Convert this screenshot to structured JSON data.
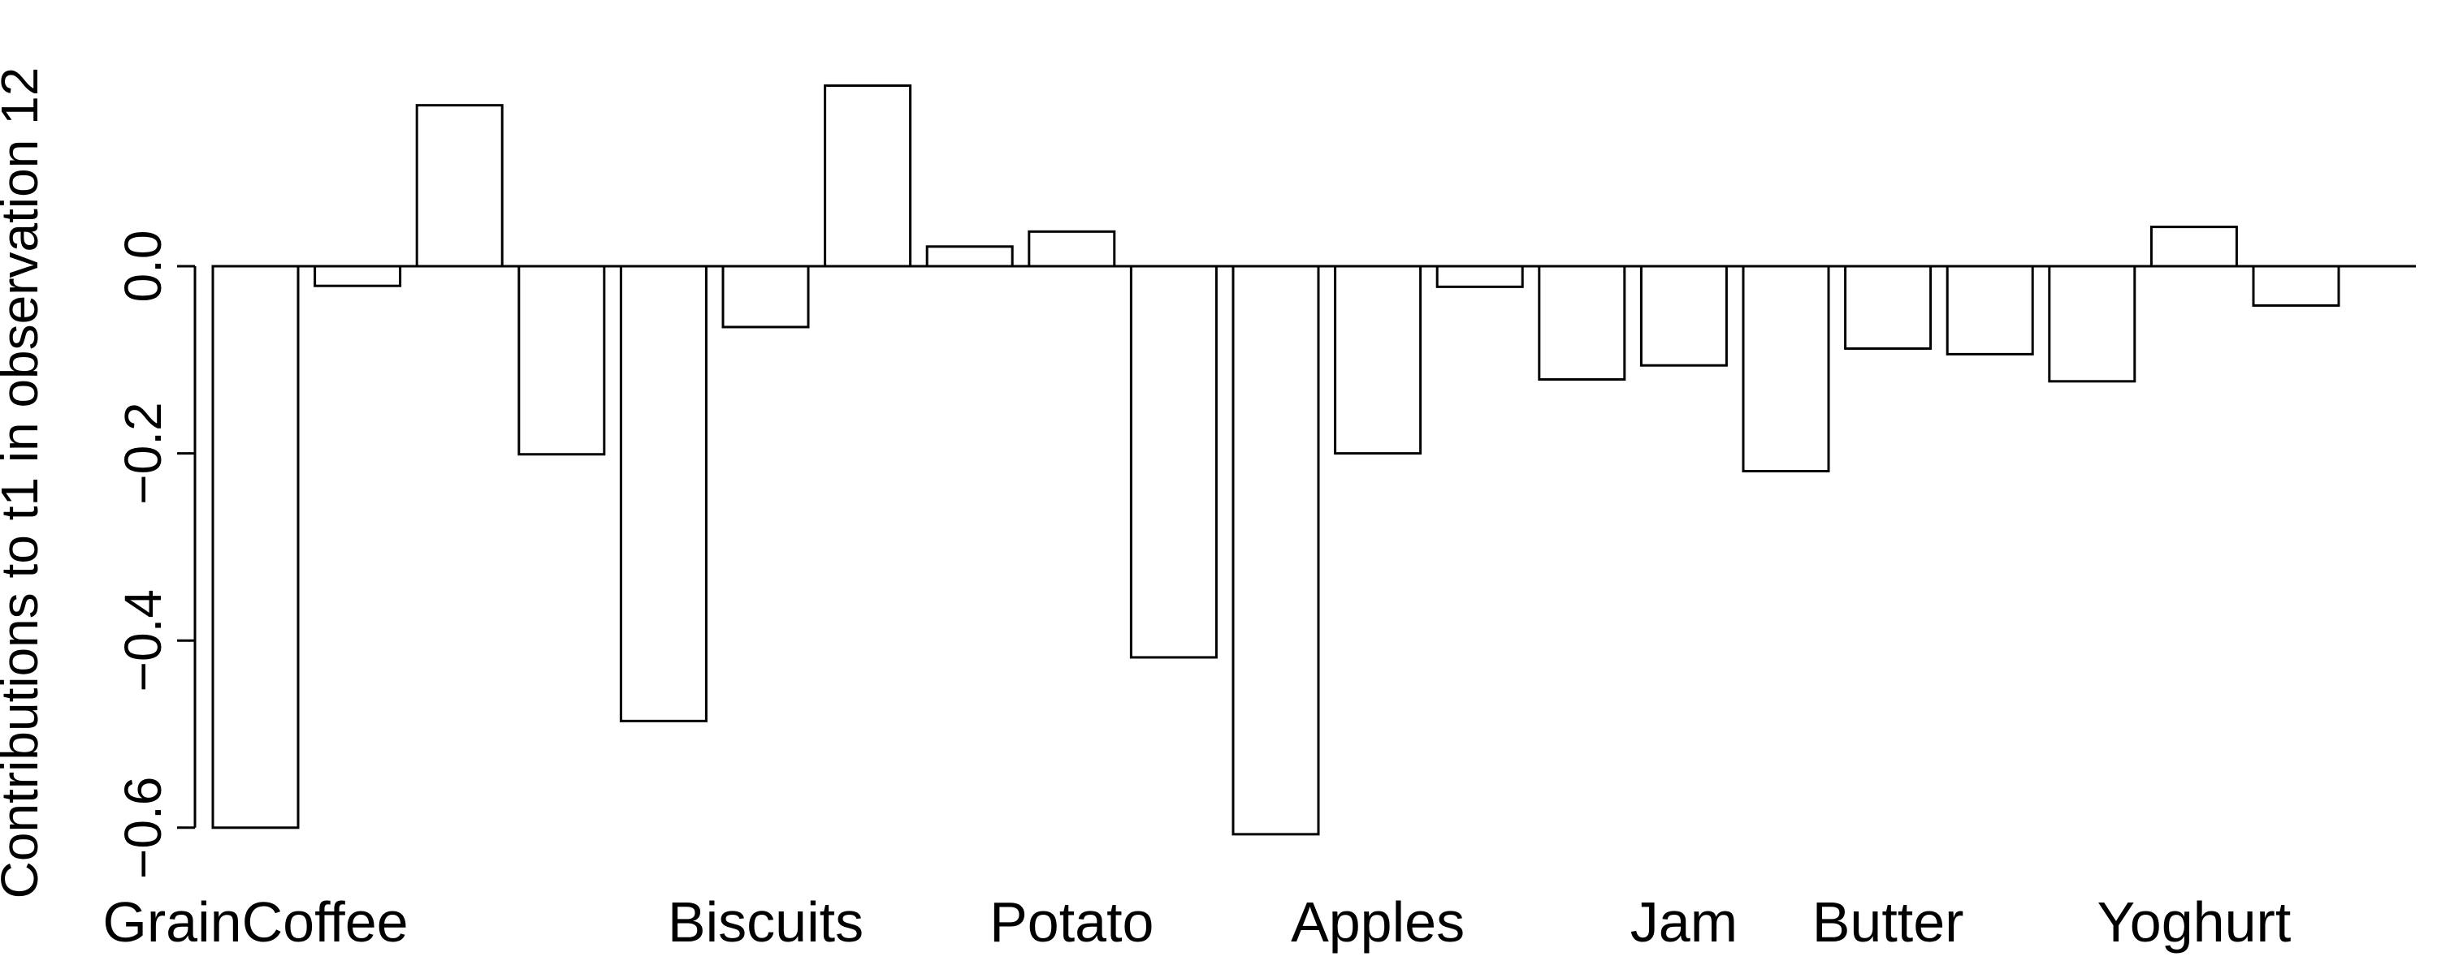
{
  "chart_data": {
    "type": "bar",
    "title": "",
    "xlabel": "",
    "ylabel": "Contributions to t1 in observation 12",
    "ylim": [
      -0.6,
      0.2
    ],
    "yticks": [
      -0.6,
      -0.4,
      -0.2,
      0.0
    ],
    "ytick_labels": [
      "−0.6",
      "−0.4",
      "−0.2",
      "0.0"
    ],
    "bar_fill": "#ffffff",
    "bar_stroke": "#000000",
    "grid": false,
    "categories": [
      "GrainCoffee",
      "",
      "",
      "",
      "Biscuits",
      "",
      "",
      "Potato",
      "",
      "",
      "Apples",
      "",
      "",
      "",
      "Jam",
      "",
      "Butter",
      "",
      "",
      "Yoghurt",
      ""
    ],
    "values": [
      -0.6,
      -0.021,
      0.172,
      -0.201,
      -0.486,
      -0.065,
      0.193,
      0.021,
      0.037,
      -0.418,
      -0.607,
      -0.2,
      -0.022,
      -0.121,
      -0.106,
      -0.219,
      -0.088,
      -0.094,
      -0.123,
      0.042,
      -0.042
    ],
    "visible_labels": [
      {
        "text": "GrainCoffee",
        "index": 0
      },
      {
        "text": "Biscuits",
        "index": 5
      },
      {
        "text": "Potato",
        "index": 8
      },
      {
        "text": "Apples",
        "index": 11
      },
      {
        "text": "Jam",
        "index": 14
      },
      {
        "text": "Butter",
        "index": 16
      },
      {
        "text": "Yoghurt",
        "index": 19
      }
    ]
  }
}
